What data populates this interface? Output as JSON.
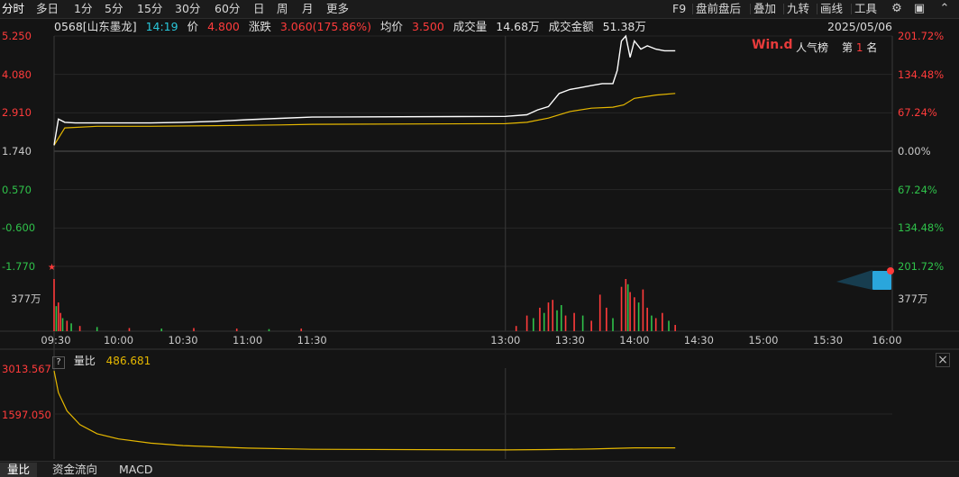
{
  "toolbar": {
    "left_items": [
      "分时",
      "多日",
      "1分",
      "5分",
      "15分",
      "30分",
      "60分",
      "日",
      "周",
      "月",
      "更多"
    ],
    "active_item": "分时",
    "right_items": [
      "F9",
      "盘前盘后",
      "叠加",
      "九转",
      "画线",
      "工具"
    ],
    "icons": [
      "gear-icon",
      "wp-icon",
      "chevron-up-icon"
    ]
  },
  "info": {
    "code_name": "0568[山东墨龙]",
    "time": "14:19",
    "price_label": "价",
    "price": "4.800",
    "change_label": "涨跌",
    "change": "3.060(175.86%)",
    "avg_label": "均价",
    "avg": "3.500",
    "volume_label": "成交量",
    "volume": "14.68万",
    "amount_label": "成交金额",
    "amount": "51.38万",
    "date": "2025/05/06"
  },
  "badge": {
    "brand": "Win.d",
    "popularity_label": "人气榜",
    "rank_prefix": "第",
    "rank": "1",
    "rank_suffix": "名"
  },
  "colors": {
    "up": "#ff3b3b",
    "down": "#2fc24a",
    "price_line": "#ffffff",
    "avg_line": "#e6b800",
    "grid": "#2a2a2a"
  },
  "price_axis": {
    "left": [
      {
        "v": "5.250",
        "c": "up"
      },
      {
        "v": "4.080",
        "c": "up"
      },
      {
        "v": "2.910",
        "c": "up"
      },
      {
        "v": "1.740",
        "c": "neutral"
      },
      {
        "v": "0.570",
        "c": "down"
      },
      {
        "v": "-0.600",
        "c": "down"
      },
      {
        "v": "-1.770",
        "c": "down"
      }
    ],
    "right": [
      {
        "v": "201.72%",
        "c": "up"
      },
      {
        "v": "134.48%",
        "c": "up"
      },
      {
        "v": "67.24%",
        "c": "up"
      },
      {
        "v": "0.00%",
        "c": "neutral"
      },
      {
        "v": "67.24%",
        "c": "down"
      },
      {
        "v": "134.48%",
        "c": "down"
      },
      {
        "v": "201.72%",
        "c": "down"
      }
    ]
  },
  "volume_axis": {
    "left": "377万",
    "right": "377万"
  },
  "time_axis": [
    "09:30",
    "10:00",
    "10:30",
    "11:00",
    "11:30",
    "13:00",
    "13:30",
    "14:00",
    "14:30",
    "15:00",
    "15:30",
    "16:00"
  ],
  "sub_chart": {
    "help": "?",
    "name": "量比",
    "value": "486.681",
    "ticks": [
      "3013.567",
      "1597.050"
    ]
  },
  "bottom_tabs": [
    "量比",
    "资金流向",
    "MACD"
  ],
  "chart_data": {
    "type": "line",
    "title": "",
    "xlabel": "",
    "ylabel": "",
    "prev_close": 1.74,
    "ylim": [
      -1.77,
      5.25
    ],
    "x_range": [
      "09:30",
      "16:00"
    ],
    "series": [
      {
        "name": "价",
        "x": [
          "09:30",
          "09:32",
          "09:35",
          "09:40",
          "09:50",
          "10:00",
          "10:15",
          "10:30",
          "10:45",
          "11:00",
          "11:15",
          "11:30",
          "13:00",
          "13:10",
          "13:15",
          "13:20",
          "13:25",
          "13:30",
          "13:35",
          "13:40",
          "13:45",
          "13:50",
          "13:52",
          "13:54",
          "13:56",
          "13:58",
          "14:00",
          "14:03",
          "14:06",
          "14:10",
          "14:14",
          "14:19"
        ],
        "values": [
          1.92,
          2.72,
          2.62,
          2.6,
          2.6,
          2.6,
          2.6,
          2.62,
          2.65,
          2.7,
          2.74,
          2.78,
          2.8,
          2.85,
          3.0,
          3.1,
          3.5,
          3.62,
          3.68,
          3.74,
          3.8,
          3.8,
          4.2,
          5.1,
          5.25,
          4.6,
          5.1,
          4.85,
          4.95,
          4.85,
          4.8,
          4.8
        ]
      },
      {
        "name": "均价",
        "x": [
          "09:30",
          "09:35",
          "09:50",
          "10:15",
          "10:45",
          "11:15",
          "11:30",
          "13:00",
          "13:10",
          "13:20",
          "13:30",
          "13:40",
          "13:50",
          "13:55",
          "14:00",
          "14:10",
          "14:19"
        ],
        "values": [
          1.92,
          2.45,
          2.5,
          2.5,
          2.52,
          2.54,
          2.56,
          2.58,
          2.62,
          2.75,
          2.95,
          3.05,
          3.08,
          3.15,
          3.35,
          3.45,
          3.5
        ]
      }
    ],
    "volume_scale": "377万",
    "volume_bars": [
      {
        "t": "09:30",
        "v": 1.0,
        "d": "up"
      },
      {
        "t": "09:31",
        "v": 0.48,
        "d": "down"
      },
      {
        "t": "09:32",
        "v": 0.55,
        "d": "up"
      },
      {
        "t": "09:33",
        "v": 0.35,
        "d": "up"
      },
      {
        "t": "09:34",
        "v": 0.25,
        "d": "down"
      },
      {
        "t": "09:36",
        "v": 0.2,
        "d": "up"
      },
      {
        "t": "09:38",
        "v": 0.15,
        "d": "down"
      },
      {
        "t": "09:42",
        "v": 0.1,
        "d": "up"
      },
      {
        "t": "09:50",
        "v": 0.08,
        "d": "down"
      },
      {
        "t": "10:05",
        "v": 0.06,
        "d": "up"
      },
      {
        "t": "10:20",
        "v": 0.05,
        "d": "down"
      },
      {
        "t": "10:35",
        "v": 0.06,
        "d": "up"
      },
      {
        "t": "10:55",
        "v": 0.05,
        "d": "up"
      },
      {
        "t": "11:10",
        "v": 0.04,
        "d": "down"
      },
      {
        "t": "11:25",
        "v": 0.05,
        "d": "up"
      },
      {
        "t": "13:05",
        "v": 0.1,
        "d": "up"
      },
      {
        "t": "13:10",
        "v": 0.3,
        "d": "up"
      },
      {
        "t": "13:13",
        "v": 0.25,
        "d": "down"
      },
      {
        "t": "13:16",
        "v": 0.45,
        "d": "up"
      },
      {
        "t": "13:18",
        "v": 0.35,
        "d": "down"
      },
      {
        "t": "13:20",
        "v": 0.55,
        "d": "up"
      },
      {
        "t": "13:22",
        "v": 0.6,
        "d": "up"
      },
      {
        "t": "13:24",
        "v": 0.4,
        "d": "down"
      },
      {
        "t": "13:26",
        "v": 0.5,
        "d": "down"
      },
      {
        "t": "13:28",
        "v": 0.3,
        "d": "up"
      },
      {
        "t": "13:32",
        "v": 0.35,
        "d": "up"
      },
      {
        "t": "13:36",
        "v": 0.3,
        "d": "down"
      },
      {
        "t": "13:40",
        "v": 0.2,
        "d": "up"
      },
      {
        "t": "13:44",
        "v": 0.7,
        "d": "up"
      },
      {
        "t": "13:47",
        "v": 0.45,
        "d": "up"
      },
      {
        "t": "13:50",
        "v": 0.25,
        "d": "down"
      },
      {
        "t": "13:54",
        "v": 0.85,
        "d": "up"
      },
      {
        "t": "13:56",
        "v": 1.0,
        "d": "up"
      },
      {
        "t": "13:57",
        "v": 0.9,
        "d": "down"
      },
      {
        "t": "13:58",
        "v": 0.75,
        "d": "up"
      },
      {
        "t": "14:00",
        "v": 0.65,
        "d": "up"
      },
      {
        "t": "14:02",
        "v": 0.55,
        "d": "down"
      },
      {
        "t": "14:04",
        "v": 0.8,
        "d": "up"
      },
      {
        "t": "14:06",
        "v": 0.45,
        "d": "up"
      },
      {
        "t": "14:08",
        "v": 0.3,
        "d": "down"
      },
      {
        "t": "14:10",
        "v": 0.25,
        "d": "up"
      },
      {
        "t": "14:13",
        "v": 0.35,
        "d": "up"
      },
      {
        "t": "14:16",
        "v": 0.2,
        "d": "down"
      },
      {
        "t": "14:19",
        "v": 0.12,
        "d": "up"
      }
    ],
    "volume_ratio": {
      "name": "量比",
      "x": [
        "09:30",
        "09:32",
        "09:36",
        "09:42",
        "09:50",
        "10:00",
        "10:15",
        "10:30",
        "11:00",
        "11:30",
        "13:00",
        "13:20",
        "13:40",
        "14:00",
        "14:19"
      ],
      "values": [
        3013.6,
        2300,
        1700,
        1250,
        950,
        780,
        640,
        560,
        480,
        440,
        420,
        430,
        450,
        486.7,
        486.7
      ]
    }
  }
}
